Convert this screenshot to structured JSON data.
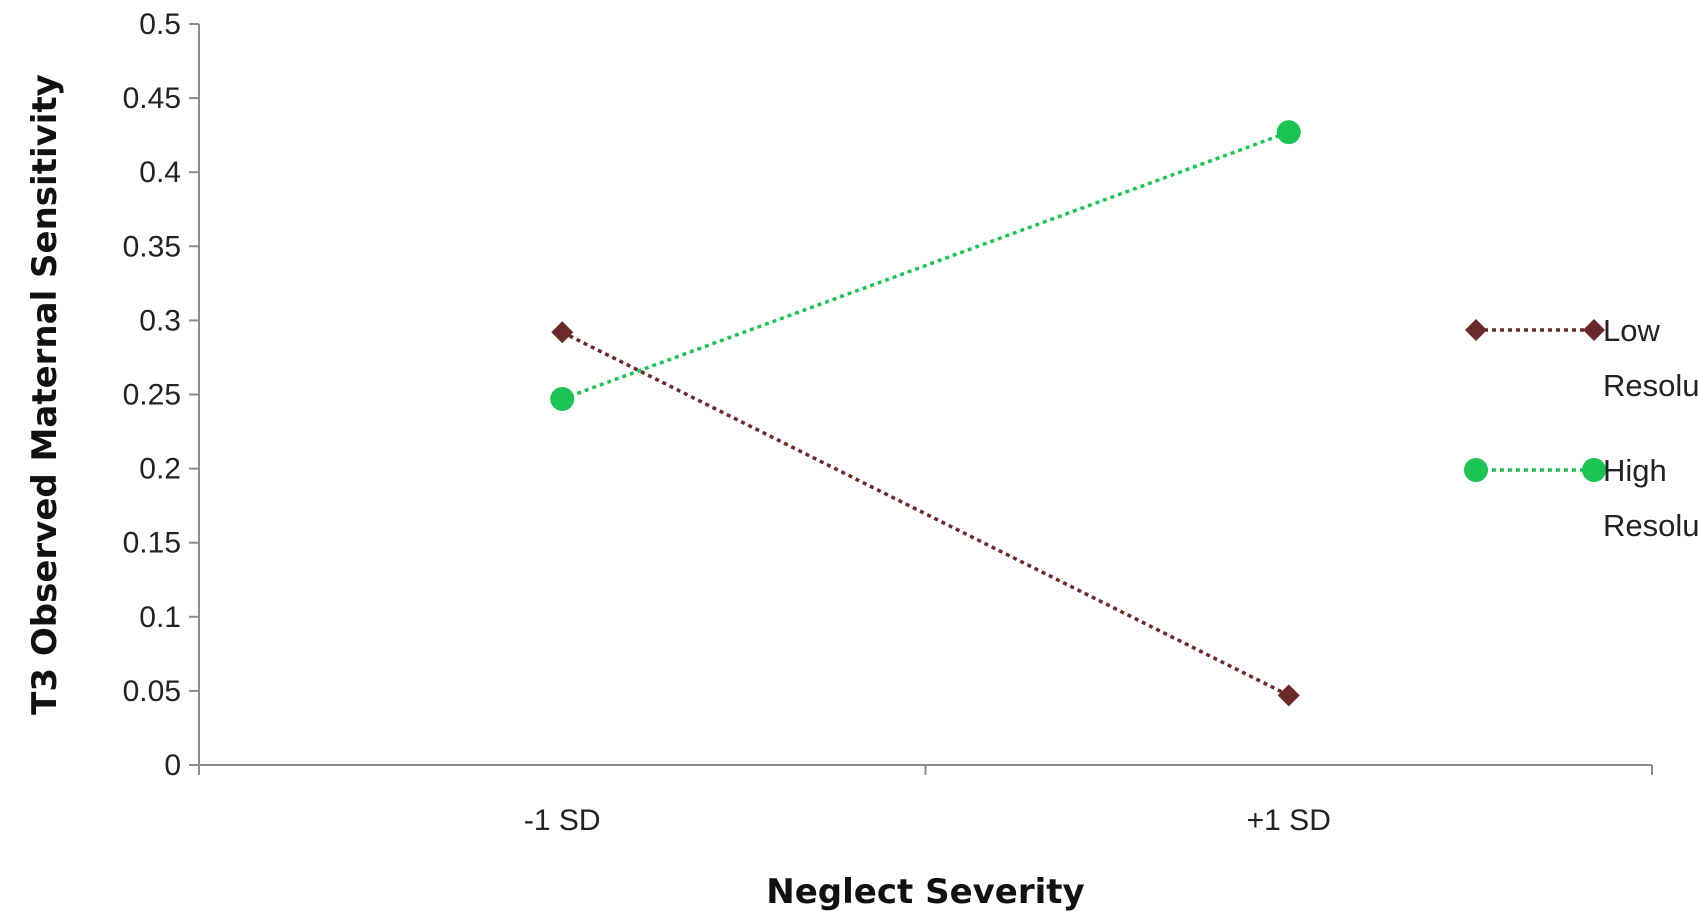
{
  "chart_data": {
    "type": "line",
    "title": "",
    "xlabel": "Neglect Severity",
    "ylabel": "T3 Observed Maternal Sensitivity",
    "categories": [
      "-1 SD",
      "+1 SD"
    ],
    "ylim": [
      0,
      0.5
    ],
    "yticks": [
      "0",
      "0.05",
      "0.1",
      "0.15",
      "0.2",
      "0.25",
      "0.3",
      "0.35",
      "0.4",
      "0.45",
      "0.5"
    ],
    "grid": false,
    "legend_position": "right",
    "series": [
      {
        "name": "Low Resolution",
        "name_lines": [
          "Low",
          "Resolution"
        ],
        "values": [
          0.292,
          0.047
        ],
        "color": "#6b2a2a",
        "marker": "diamond",
        "line_style": "dotted"
      },
      {
        "name": "High Resolution",
        "name_lines": [
          "High",
          "Resolution"
        ],
        "values": [
          0.247,
          0.427
        ],
        "color": "#1cc454",
        "marker": "circle",
        "line_style": "dotted"
      }
    ]
  }
}
